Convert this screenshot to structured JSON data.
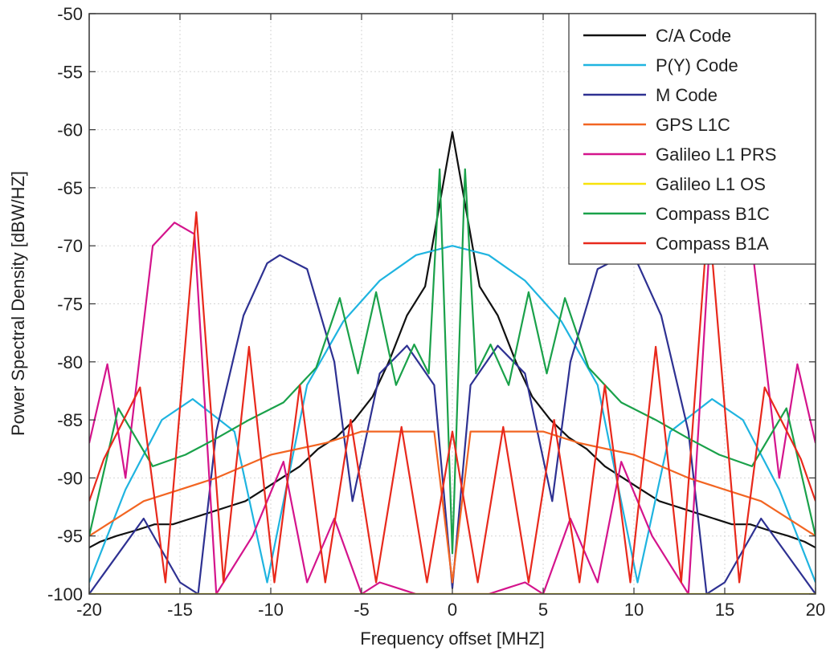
{
  "chart_data": {
    "type": "line",
    "title": "",
    "xlabel": "Frequency offset [MHZ]",
    "ylabel": "Power Spectral Density [dBW/HZ]",
    "xlim": [
      -20,
      20
    ],
    "ylim": [
      -100,
      -50
    ],
    "xticks": [
      -20,
      -15,
      -10,
      -5,
      0,
      5,
      10,
      15,
      20
    ],
    "yticks": [
      -50,
      -55,
      -60,
      -65,
      -70,
      -75,
      -80,
      -85,
      -90,
      -95,
      -100
    ],
    "grid": true,
    "legend_position": "top-right",
    "series": [
      {
        "name": "C/A Code",
        "color": "#111111",
        "x": [
          -20,
          -19.4,
          -18.5,
          -17.4,
          -16.4,
          -15.4,
          -14.4,
          -13.4,
          -12.4,
          -11.4,
          -10.4,
          -9.4,
          -8.4,
          -7.4,
          -6.4,
          -5.4,
          -4.4,
          -3.5,
          -2.5,
          -1.5,
          0,
          1.5,
          2.5,
          3.5,
          4.4,
          5.4,
          6.4,
          7.4,
          8.4,
          9.4,
          10.4,
          11.4,
          12.4,
          13.4,
          14.4,
          15.4,
          16.4,
          17.4,
          18.5,
          19.4,
          20
        ],
        "y": [
          -96,
          -95.5,
          -95,
          -94.5,
          -94,
          -94,
          -93.5,
          -93,
          -92.5,
          -92,
          -91,
          -90,
          -89,
          -87.5,
          -86.5,
          -85,
          -83,
          -80,
          -76,
          -73.5,
          -60.2,
          -73.5,
          -76,
          -80,
          -83,
          -85,
          -86.5,
          -87.5,
          -89,
          -90,
          -91,
          -92,
          -92.5,
          -93,
          -93.5,
          -94,
          -94,
          -94.5,
          -95,
          -95.5,
          -96
        ]
      },
      {
        "name": "P(Y) Code",
        "color": "#1fb4e0",
        "x": [
          -20,
          -18,
          -16,
          -14.3,
          -12,
          -10.2,
          -8,
          -6,
          -4,
          -2,
          0,
          2,
          4,
          6,
          8,
          10.2,
          12,
          14.3,
          16,
          18,
          20
        ],
        "y": [
          -99,
          -91,
          -85,
          -83.2,
          -86,
          -99,
          -82,
          -76.5,
          -73,
          -70.8,
          -70,
          -70.8,
          -73,
          -76.5,
          -82,
          -99,
          -86,
          -83.2,
          -85,
          -91,
          -99
        ]
      },
      {
        "name": "M Code",
        "color": "#2e3192",
        "x": [
          -20,
          -17,
          -15,
          -14,
          -13,
          -11.5,
          -10.2,
          -9.5,
          -8,
          -6.5,
          -5.5,
          -4,
          -2.5,
          -1,
          0,
          1,
          2.5,
          4,
          5.5,
          6.5,
          8,
          9.5,
          10.2,
          11.5,
          13,
          14,
          15,
          17,
          20
        ],
        "y": [
          -100,
          -93.5,
          -99,
          -100,
          -86,
          -76,
          -71.5,
          -70.8,
          -72,
          -80,
          -92,
          -81,
          -78.6,
          -82,
          -99.5,
          -82,
          -78.6,
          -81,
          -92,
          -80,
          -72,
          -70.8,
          -71.5,
          -76,
          -86,
          -100,
          -99,
          -93.5,
          -100
        ]
      },
      {
        "name": "GPS L1C",
        "color": "#f26522",
        "x": [
          -20,
          -17,
          -15,
          -13,
          -10,
          -7,
          -5,
          -3,
          -1,
          0,
          1,
          3,
          5,
          7,
          10,
          13,
          15,
          17,
          20
        ],
        "y": [
          -95,
          -92,
          -91,
          -90,
          -88,
          -87,
          -86,
          -86,
          -86,
          -99,
          -86,
          -86,
          -86,
          -87,
          -88,
          -90,
          -91,
          -92,
          -95
        ]
      },
      {
        "name": "Galileo L1 PRS",
        "color": "#d4148c",
        "x": [
          -20,
          -19,
          -18,
          -16.5,
          -15.3,
          -14.2,
          -13,
          -11,
          -9.3,
          -8,
          -6.5,
          -5,
          -4,
          -2,
          0,
          2,
          4,
          5,
          6.5,
          8,
          9.3,
          11,
          13,
          14.2,
          15.3,
          16.5,
          18,
          19,
          20
        ],
        "y": [
          -87,
          -80.2,
          -90,
          -70,
          -68,
          -69,
          -100,
          -95,
          -88.6,
          -99,
          -93.5,
          -100,
          -99,
          -100,
          -100,
          -100,
          -99,
          -100,
          -93.5,
          -99,
          -88.6,
          -95,
          -100,
          -69,
          -68,
          -70,
          -90,
          -80.2,
          -87
        ]
      },
      {
        "name": "Galileo L1 OS",
        "color": "#f7e20a",
        "x": [
          -20,
          -10,
          0,
          10,
          20
        ],
        "y": [
          -100,
          -100,
          -100,
          -100,
          -100
        ]
      },
      {
        "name": "Compass B1C",
        "color": "#1aa14a",
        "x": [
          -20,
          -18.4,
          -16.5,
          -14.7,
          -13,
          -11.2,
          -9.3,
          -7.5,
          -6.2,
          -5.2,
          -4.2,
          -3.1,
          -2.1,
          -1.3,
          -0.7,
          0,
          0.7,
          1.3,
          2.1,
          3.1,
          4.2,
          5.2,
          6.2,
          7.5,
          9.3,
          11.2,
          13,
          14.7,
          16.5,
          18.4,
          20
        ],
        "y": [
          -95,
          -84,
          -89,
          -88,
          -86.6,
          -85,
          -83.5,
          -80.5,
          -74.5,
          -81,
          -74,
          -82,
          -78.5,
          -81,
          -63.4,
          -96.5,
          -63.4,
          -81,
          -78.5,
          -82,
          -74,
          -81,
          -74.5,
          -80.5,
          -83.5,
          -85,
          -86.6,
          -88,
          -89,
          -84,
          -95
        ]
      },
      {
        "name": "Compass B1A",
        "color": "#e8291c",
        "x": [
          -20,
          -19.2,
          -17.2,
          -15.8,
          -14.1,
          -12.6,
          -11.2,
          -9.8,
          -8.4,
          -7,
          -5.6,
          -4.2,
          -2.8,
          -1.4,
          0,
          1.4,
          2.8,
          4.2,
          5.6,
          7,
          8.4,
          9.8,
          11.2,
          12.6,
          14.1,
          15.8,
          17.2,
          19.2,
          20
        ],
        "y": [
          -92,
          -88.4,
          -82.2,
          -99,
          -67.1,
          -99,
          -78.7,
          -99,
          -82,
          -99,
          -85,
          -99,
          -85.6,
          -99,
          -86,
          -99,
          -85.6,
          -99,
          -85,
          -99,
          -82,
          -99,
          -78.7,
          -99,
          -67.1,
          -99,
          -82.2,
          -88.4,
          -92
        ]
      }
    ]
  }
}
